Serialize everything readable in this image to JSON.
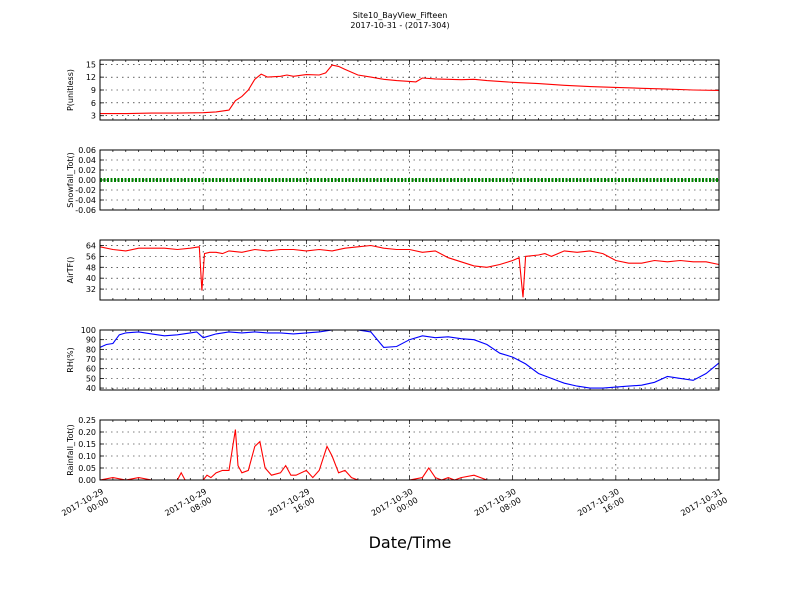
{
  "title": "Site10_BayView_Fifteen",
  "subtitle": "2017-10-31 - (2017-304)",
  "xlabel": "Date/Time",
  "x_ticks": [
    {
      "line1": "2017-10-29",
      "line2": "00:00"
    },
    {
      "line1": "2017-10-29",
      "line2": "08:00"
    },
    {
      "line1": "2017-10-29",
      "line2": "16:00"
    },
    {
      "line1": "2017-10-30",
      "line2": "00:00"
    },
    {
      "line1": "2017-10-30",
      "line2": "08:00"
    },
    {
      "line1": "2017-10-30",
      "line2": "16:00"
    },
    {
      "line1": "2017-10-31",
      "line2": "00:00"
    }
  ],
  "chart_data": [
    {
      "type": "line",
      "ylabel": "P(unitless)",
      "color": "#ff0000",
      "ylim": [
        2,
        16
      ],
      "yticks": [
        "3",
        "6",
        "9",
        "12",
        "15"
      ],
      "x_hours": [
        0,
        2,
        4,
        6,
        8,
        9,
        10,
        10.5,
        11,
        11.5,
        12,
        12.5,
        13,
        14,
        14.5,
        15,
        16,
        17,
        17.5,
        18,
        18.5,
        19,
        20,
        21,
        22,
        23,
        24,
        24.5,
        25,
        26,
        27,
        28,
        29,
        30,
        32,
        34,
        36,
        38,
        40,
        42,
        44,
        46,
        48
      ],
      "y": [
        3.5,
        3.5,
        3.6,
        3.6,
        3.7,
        3.9,
        4.3,
        6.5,
        7.5,
        9.0,
        11.5,
        12.7,
        12.0,
        12.2,
        12.5,
        12.2,
        12.6,
        12.5,
        13.0,
        14.8,
        14.5,
        13.8,
        12.5,
        12.0,
        11.5,
        11.2,
        11.0,
        10.9,
        11.8,
        11.6,
        11.5,
        11.4,
        11.5,
        11.2,
        10.8,
        10.5,
        10.1,
        9.8,
        9.6,
        9.4,
        9.2,
        9.0,
        8.9
      ]
    },
    {
      "type": "line",
      "ylabel": "Snowfall_Tot()",
      "color": "#008000",
      "ylim": [
        -0.06,
        0.06
      ],
      "yticks": [
        "-0.06",
        "-0.04",
        "-0.02",
        "0.00",
        "0.02",
        "0.04",
        "0.06"
      ],
      "x_hours": [
        0,
        48
      ],
      "y": [
        0,
        0
      ]
    },
    {
      "type": "line",
      "ylabel": "AirTF()",
      "color": "#ff0000",
      "ylim": [
        24,
        68
      ],
      "yticks": [
        "32",
        "40",
        "48",
        "56",
        "64"
      ],
      "x_hours": [
        0,
        1,
        2,
        3,
        4,
        5,
        6,
        7,
        7.7,
        7.9,
        8.1,
        8.5,
        9,
        9.5,
        10,
        11,
        12,
        13,
        14,
        15,
        16,
        17,
        18,
        19,
        20,
        21,
        22,
        23,
        24,
        25,
        26,
        27,
        28,
        29,
        30,
        31,
        32,
        32.5,
        32.8,
        33,
        34,
        34.5,
        35,
        36,
        37,
        38,
        39,
        40,
        41,
        42,
        43,
        44,
        45,
        46,
        47,
        48
      ],
      "y": [
        63,
        61,
        60,
        62,
        62,
        62,
        61,
        62,
        63,
        31,
        58,
        59,
        59,
        58,
        60,
        59,
        61,
        60,
        61,
        61,
        60,
        61,
        60,
        62,
        63,
        64,
        62,
        61,
        61,
        59,
        60,
        55,
        52,
        49,
        48,
        50,
        53,
        55,
        26,
        56,
        57,
        58,
        56,
        60,
        59,
        60,
        58,
        53,
        51,
        51,
        53,
        52,
        53,
        52,
        52,
        50
      ]
    },
    {
      "type": "line",
      "ylabel": "RH(%)",
      "color": "#0000ff",
      "ylim": [
        38,
        100
      ],
      "yticks": [
        "40",
        "50",
        "60",
        "70",
        "80",
        "90",
        "100"
      ],
      "x_hours": [
        0,
        0.5,
        1,
        1.5,
        2,
        3,
        4,
        5,
        6,
        7,
        7.5,
        8,
        9,
        10,
        11,
        12,
        13,
        14,
        15,
        16,
        17,
        18,
        19,
        20,
        21,
        22,
        23,
        24,
        25,
        26,
        27,
        28,
        29,
        30,
        31,
        32,
        33,
        34,
        35,
        36,
        37,
        38,
        39,
        40,
        41,
        42,
        43,
        44,
        45,
        46,
        47,
        48
      ],
      "y": [
        82,
        85,
        86,
        95,
        97,
        98,
        96,
        94,
        95,
        97,
        98,
        92,
        96,
        98,
        97,
        98,
        97,
        97,
        96,
        97,
        98,
        100,
        100,
        100,
        98,
        82,
        83,
        90,
        94,
        92,
        93,
        91,
        90,
        85,
        76,
        72,
        65,
        55,
        50,
        45,
        42,
        40,
        40,
        41,
        42,
        43,
        46,
        52,
        50,
        48,
        55,
        66
      ]
    },
    {
      "type": "line",
      "ylabel": "Rainfall_Tot()",
      "color": "#ff0000",
      "ylim": [
        0,
        0.25
      ],
      "yticks": [
        "0.00",
        "0.05",
        "0.10",
        "0.15",
        "0.20",
        "0.25"
      ],
      "x_hours": [
        0,
        1,
        2,
        3,
        4,
        5,
        6,
        6.3,
        6.6,
        7,
        8,
        8.3,
        8.6,
        9,
        9.5,
        10,
        10.5,
        10.7,
        11,
        11.5,
        12,
        12.4,
        12.8,
        13.3,
        14,
        14.4,
        14.8,
        15.2,
        16,
        16.5,
        17,
        17.6,
        18,
        18.5,
        19,
        19.5,
        20,
        21,
        22,
        23,
        24,
        25,
        25.5,
        26,
        26.5,
        27,
        27.5,
        28,
        29,
        30,
        31,
        32,
        34,
        36,
        38,
        40,
        42,
        44,
        46,
        48
      ],
      "y": [
        0,
        0.01,
        0,
        0.01,
        0,
        0,
        0,
        0.03,
        0,
        0,
        0,
        0.02,
        0.01,
        0.03,
        0.04,
        0.04,
        0.21,
        0.06,
        0.03,
        0.04,
        0.14,
        0.16,
        0.05,
        0.02,
        0.03,
        0.06,
        0.02,
        0.02,
        0.04,
        0.01,
        0.04,
        0.14,
        0.1,
        0.03,
        0.04,
        0.01,
        0,
        0,
        0,
        0,
        0,
        0.01,
        0.05,
        0.01,
        0,
        0.01,
        0,
        0.01,
        0.02,
        0,
        0,
        0,
        0,
        0,
        0,
        0,
        0,
        0,
        0,
        0
      ]
    }
  ]
}
